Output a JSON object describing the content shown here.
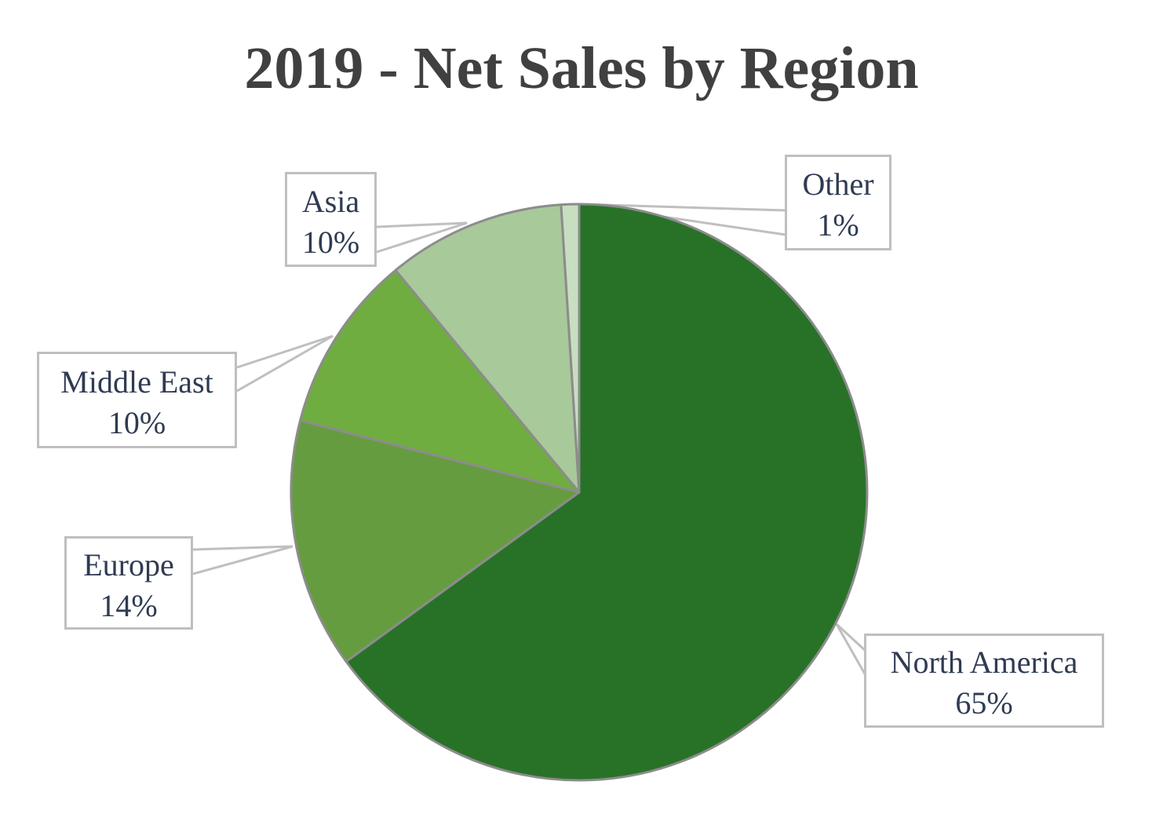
{
  "chart_data": {
    "type": "pie",
    "title": "2019 - Net Sales by Region",
    "categories": [
      "North America",
      "Europe",
      "Middle East",
      "Asia",
      "Other"
    ],
    "values": [
      65,
      14,
      10,
      10,
      1
    ],
    "labels": [
      "65%",
      "14%",
      "10%",
      "10%",
      "1%"
    ],
    "start_angle_deg": 0,
    "direction": "clockwise",
    "legend": "none (data callouts)",
    "colors": [
      "#287228",
      "#669c40",
      "#6fad40",
      "#a8c99a",
      "#c8dec0"
    ],
    "slice_border_color": "#8c8c8c",
    "callout_border_color": "#bfbfbf"
  },
  "callouts": [
    {
      "name": "North America",
      "pct": "65%"
    },
    {
      "name": "Europe",
      "pct": "14%"
    },
    {
      "name": "Middle East",
      "pct": "10%"
    },
    {
      "name": "Asia",
      "pct": "10%"
    },
    {
      "name": "Other",
      "pct": "1%"
    }
  ]
}
